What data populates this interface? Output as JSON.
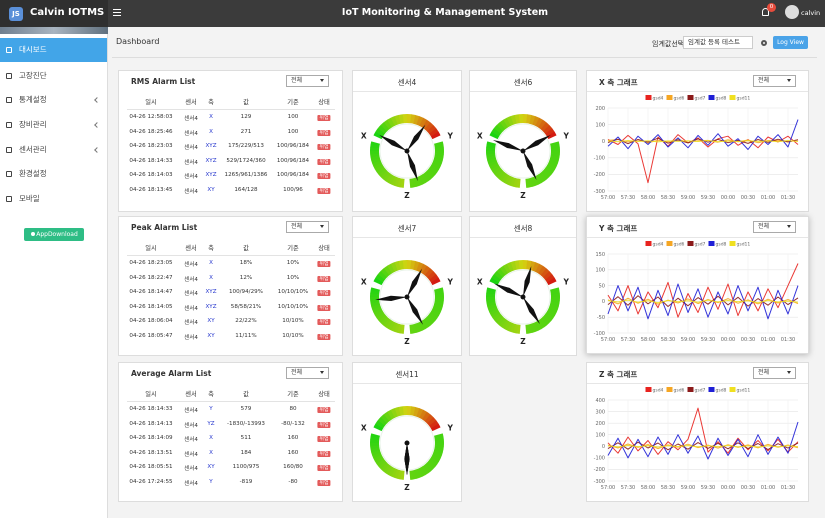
{
  "header": {
    "brand_badge": "JS",
    "brand": "Calvin IOTMS",
    "title": "IoT Monitoring & Management System",
    "notification_count": "0",
    "user": "calvin"
  },
  "sidebar": {
    "items": [
      "대시보드",
      "고장진단",
      "통계설정",
      "장비관리",
      "센서관리",
      "환경설정",
      "모바일"
    ],
    "app_button": "AppDownload"
  },
  "toolbar": {
    "title": "Dashboard",
    "threshold_label": "임계값선택:",
    "threshold_value": "임계값 등록 테스트",
    "button": "Log View"
  },
  "tables": [
    {
      "title": "RMS Alarm List",
      "filter": "전체",
      "columns": [
        "일시",
        "센서",
        "축",
        "값",
        "기준",
        "상태"
      ],
      "rows": [
        [
          "04-26 12:58:03",
          "센서4",
          "X",
          "129",
          "100",
          "위험"
        ],
        [
          "04-26 18:25:46",
          "센서4",
          "X",
          "271",
          "100",
          "위험"
        ],
        [
          "04-26 18:23:03",
          "센서4",
          "XYZ",
          "175/229/513",
          "100/96/184",
          "위험"
        ],
        [
          "04-26 18:14:33",
          "센서4",
          "XYZ",
          "529/1724/360",
          "100/96/184",
          "위험"
        ],
        [
          "04-26 18:14:03",
          "센서4",
          "XYZ",
          "1265/961/1386",
          "100/96/184",
          "위험"
        ],
        [
          "04-26 18:13:45",
          "센서4",
          "XY",
          "164/128",
          "100/96",
          "위험"
        ]
      ]
    },
    {
      "title": "Peak Alarm List",
      "filter": "전체",
      "columns": [
        "일시",
        "센서",
        "축",
        "값",
        "기준",
        "상태"
      ],
      "rows": [
        [
          "04-26 18:23:05",
          "센서4",
          "X",
          "18%",
          "10%",
          "위험"
        ],
        [
          "04-26 18:22:47",
          "센서4",
          "X",
          "12%",
          "10%",
          "위험"
        ],
        [
          "04-26 18:14:47",
          "센서4",
          "XYZ",
          "100/94/29%",
          "10/10/10%",
          "위험"
        ],
        [
          "04-26 18:14:05",
          "센서4",
          "XYZ",
          "58/58/21%",
          "10/10/10%",
          "위험"
        ],
        [
          "04-26 18:06:04",
          "센서4",
          "XY",
          "22/22%",
          "10/10%",
          "위험"
        ],
        [
          "04-26 18:05:47",
          "센서4",
          "XY",
          "11/11%",
          "10/10%",
          "위험"
        ]
      ]
    },
    {
      "title": "Average Alarm List",
      "filter": "전체",
      "columns": [
        "일시",
        "센서",
        "축",
        "값",
        "기준",
        "상태"
      ],
      "rows": [
        [
          "04-26 18:14:33",
          "센서4",
          "Y",
          "579",
          "80",
          "위험"
        ],
        [
          "04-26 18:14:13",
          "센서4",
          "YZ",
          "-1830/-13993",
          "-80/-132",
          "위험"
        ],
        [
          "04-26 18:14:09",
          "센서4",
          "X",
          "511",
          "160",
          "위험"
        ],
        [
          "04-26 18:13:51",
          "센서4",
          "X",
          "184",
          "160",
          "위험"
        ],
        [
          "04-26 18:05:51",
          "센서4",
          "XY",
          "1100/975",
          "160/80",
          "위험"
        ],
        [
          "04-26 17:24:55",
          "센서4",
          "Y",
          "-819",
          "-80",
          "위험"
        ]
      ]
    }
  ],
  "gauges": [
    {
      "title": "센서4",
      "axes": [
        "X",
        "Y",
        "Z"
      ],
      "needles": [
        150,
        55,
        -70
      ]
    },
    {
      "title": "센서6",
      "axes": [
        "X",
        "Y",
        "Z"
      ],
      "needles": [
        160,
        30,
        -65
      ]
    },
    {
      "title": "센서7",
      "axes": [
        "X",
        "Y",
        "Z"
      ],
      "needles": [
        185,
        62,
        -60
      ]
    },
    {
      "title": "센서8",
      "axes": [
        "X",
        "Y",
        "Z"
      ],
      "needles": [
        155,
        75,
        -58
      ]
    },
    {
      "title": "센서11",
      "axes": [
        "X",
        "Y",
        "Z"
      ],
      "needles": [
        -90,
        -90,
        -90
      ]
    }
  ],
  "chart_data": [
    {
      "type": "line",
      "title": "X 축 그래프",
      "filter": "전체",
      "categories": [
        "57:00",
        null,
        "57:30",
        null,
        "58:00",
        null,
        "58:30",
        null,
        "59:00",
        null,
        "59:30",
        null,
        "00:00",
        null,
        "00:30",
        null,
        "01:00",
        null,
        "01:30",
        null
      ],
      "ylim": [
        -300,
        200
      ],
      "yticks": [
        200,
        100,
        0,
        -100,
        -200,
        -300
      ],
      "grid": true,
      "series": [
        {
          "name": "gsd4",
          "color": "#e8231f",
          "values": [
            10,
            -20,
            35,
            -15,
            -250,
            25,
            -30,
            40,
            -10,
            20,
            -35,
            15,
            30,
            -25,
            10,
            -40,
            25,
            -5,
            30,
            -20
          ]
        },
        {
          "name": "gsd6",
          "color": "#f5a623",
          "values": [
            5,
            10,
            -5,
            8,
            -10,
            6,
            -4,
            12,
            -8,
            3,
            5,
            -6,
            9,
            -3,
            7,
            -9,
            4,
            6,
            -5,
            8
          ]
        },
        {
          "name": "gsd7",
          "color": "#8b1a1a",
          "values": [
            -8,
            12,
            -15,
            10,
            -5,
            18,
            -12,
            7,
            -10,
            14,
            -6,
            11,
            -9,
            5,
            -13,
            10,
            -7,
            12,
            -4,
            9
          ]
        },
        {
          "name": "gsd8",
          "color": "#1f1fd6",
          "values": [
            -30,
            25,
            -45,
            30,
            -20,
            40,
            -35,
            20,
            -40,
            35,
            -25,
            45,
            -30,
            15,
            -50,
            30,
            -20,
            40,
            -35,
            130
          ]
        },
        {
          "name": "gsd11",
          "color": "#f0e020",
          "values": [
            2,
            -3,
            4,
            -2,
            3,
            -4,
            2,
            -1,
            3,
            -2,
            4,
            -3,
            1,
            -2,
            3,
            -1,
            2,
            -3,
            4,
            -2
          ]
        }
      ]
    },
    {
      "type": "line",
      "title": "Y 축 그래프",
      "filter": "전체",
      "categories": [
        "57:00",
        null,
        "57:30",
        null,
        "58:00",
        null,
        "58:30",
        null,
        "59:00",
        null,
        "59:30",
        null,
        "00:00",
        null,
        "00:30",
        null,
        "01:00",
        null,
        "01:30",
        null
      ],
      "ylim": [
        -100,
        150
      ],
      "yticks": [
        150,
        100,
        50,
        0,
        -50,
        -100
      ],
      "grid": true,
      "series": [
        {
          "name": "gsd4",
          "color": "#e8231f",
          "values": [
            20,
            -30,
            50,
            -40,
            30,
            -20,
            60,
            -50,
            25,
            -35,
            45,
            -25,
            55,
            -45,
            30,
            -30,
            40,
            -20,
            50,
            120
          ]
        },
        {
          "name": "gsd6",
          "color": "#f5a623",
          "values": [
            5,
            -8,
            10,
            -6,
            7,
            -9,
            4,
            -5,
            8,
            -7,
            6,
            -4,
            9,
            -6,
            5,
            -8,
            7,
            -5,
            6,
            -7
          ]
        },
        {
          "name": "gsd7",
          "color": "#8b1a1a",
          "values": [
            -10,
            15,
            -12,
            18,
            -8,
            14,
            -16,
            10,
            -14,
            12,
            -9,
            16,
            -11,
            13,
            -15,
            9,
            -12,
            14,
            -10,
            11
          ]
        },
        {
          "name": "gsd8",
          "color": "#1f1fd6",
          "values": [
            -40,
            50,
            -30,
            45,
            -55,
            35,
            -45,
            55,
            -35,
            40,
            -50,
            30,
            -40,
            50,
            -30,
            45,
            -55,
            35,
            -40,
            50
          ]
        },
        {
          "name": "gsd11",
          "color": "#f0e020",
          "values": [
            3,
            -2,
            4,
            -3,
            2,
            -4,
            3,
            -1,
            2,
            -3,
            4,
            -2,
            3,
            -1,
            2,
            -4,
            3,
            -2,
            1,
            -3
          ]
        }
      ]
    },
    {
      "type": "line",
      "title": "Z 축 그래프",
      "filter": "전체",
      "categories": [
        "57:00",
        null,
        "57:30",
        null,
        "58:00",
        null,
        "58:30",
        null,
        "59:00",
        null,
        "59:30",
        null,
        "00:00",
        null,
        "00:30",
        null,
        "01:00",
        null,
        "01:30",
        null
      ],
      "ylim": [
        -300,
        400
      ],
      "yticks": [
        400,
        300,
        200,
        100,
        0,
        -100,
        -200,
        -300
      ],
      "grid": true,
      "series": [
        {
          "name": "gsd4",
          "color": "#e8231f",
          "values": [
            30,
            -60,
            80,
            -40,
            50,
            -70,
            40,
            -30,
            60,
            330,
            -50,
            40,
            -60,
            70,
            -30,
            50,
            -40,
            60,
            -50,
            40
          ]
        },
        {
          "name": "gsd6",
          "color": "#f5a623",
          "values": [
            10,
            -15,
            20,
            -10,
            15,
            -20,
            12,
            -8,
            18,
            -12,
            10,
            -16,
            14,
            -10,
            12,
            -14,
            16,
            -9,
            11,
            -13
          ]
        },
        {
          "name": "gsd7",
          "color": "#8b1a1a",
          "values": [
            -20,
            30,
            -25,
            35,
            -15,
            28,
            -30,
            20,
            -25,
            32,
            -18,
            26,
            -22,
            30,
            -20,
            24,
            -28,
            22,
            -16,
            28
          ]
        },
        {
          "name": "gsd8",
          "color": "#1f1fd6",
          "values": [
            -80,
            70,
            -100,
            60,
            -90,
            80,
            -70,
            100,
            -60,
            90,
            -110,
            70,
            -80,
            60,
            -90,
            100,
            -70,
            80,
            -60,
            210
          ]
        },
        {
          "name": "gsd11",
          "color": "#f0e020",
          "values": [
            5,
            -6,
            8,
            -4,
            6,
            -7,
            5,
            -3,
            7,
            -5,
            6,
            -4,
            8,
            -6,
            5,
            -7,
            4,
            -5,
            6,
            -4
          ]
        }
      ]
    }
  ]
}
